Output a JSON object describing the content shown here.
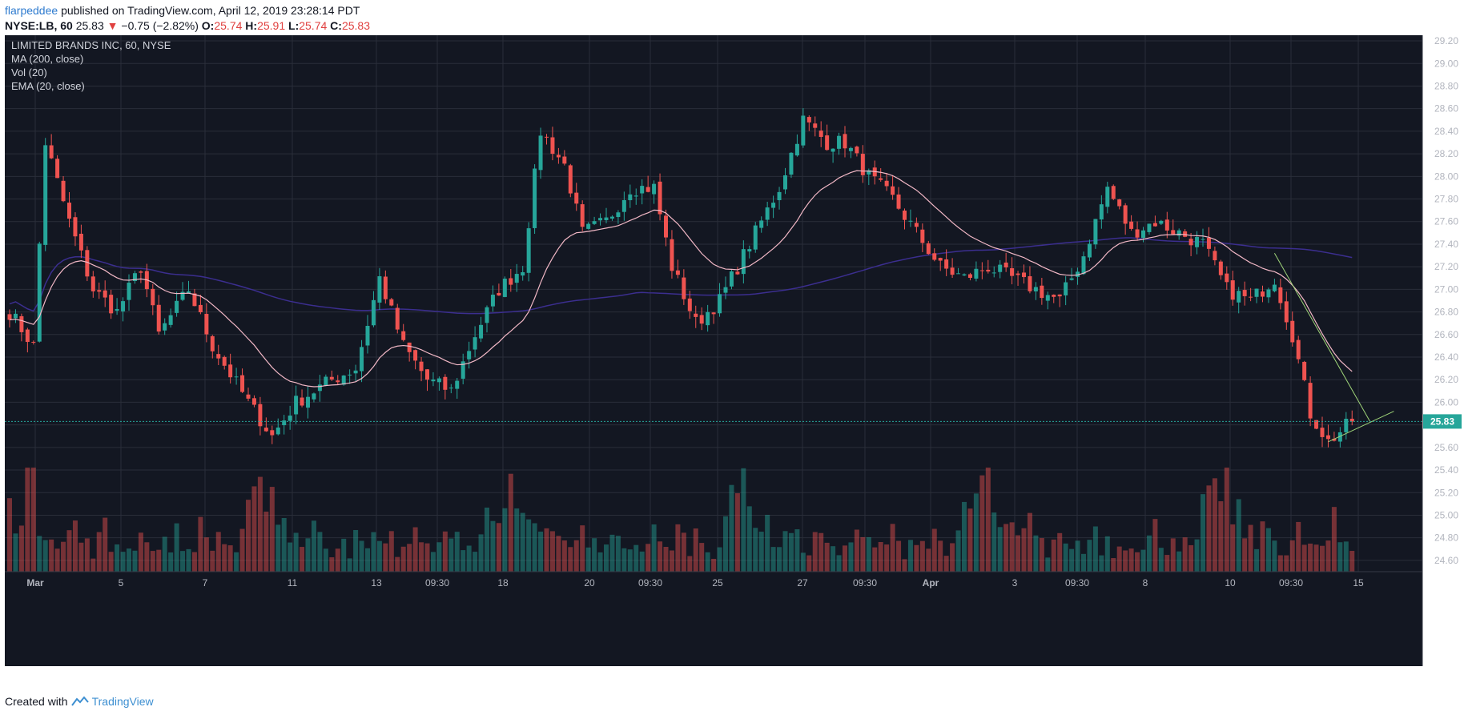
{
  "header": {
    "user": "flarpeddee",
    "published": "published on TradingView.com, April 12, 2019 23:28:14 PDT",
    "symbol": "NYSE:LB, 60",
    "last": "25.83",
    "change_arrow": "▼",
    "change": "−0.75 (−2.82%)",
    "o_label": "O:",
    "o": "25.74",
    "h_label": "H:",
    "h": "25.91",
    "l_label": "L:",
    "l": "25.74",
    "c_label": "C:",
    "c": "25.83"
  },
  "legend": {
    "title": "LIMITED BRANDS INC, 60, NYSE",
    "ma": "MA (200, close)",
    "vol": "Vol (20)",
    "ema": "EMA (20, close)"
  },
  "footer": {
    "created_with": "Created with",
    "brand": "TradingView"
  },
  "colors": {
    "background": "#131722",
    "grid": "#2a2e39",
    "up": "#26a69a",
    "down": "#ef5350",
    "ema": "#f2b8c6",
    "ma": "#3b2e8f",
    "price_line": "#26a69a",
    "trend": "#9fd479"
  },
  "chart_data": {
    "type": "candlestick",
    "title": "LIMITED BRANDS INC, 60, NYSE",
    "y_axis": {
      "min": 24.5,
      "max": 29.25,
      "ticks": [
        "29.20",
        "29.00",
        "28.80",
        "28.60",
        "28.40",
        "28.20",
        "28.00",
        "27.80",
        "27.60",
        "27.40",
        "27.20",
        "27.00",
        "26.80",
        "26.60",
        "26.40",
        "26.20",
        "26.00",
        "25.80",
        "25.60",
        "25.40",
        "25.20",
        "25.00",
        "24.80",
        "24.60"
      ]
    },
    "x_axis": {
      "ticks": [
        "Mar",
        "5",
        "7",
        "11",
        "13",
        "09:30",
        "18",
        "20",
        "09:30",
        "25",
        "27",
        "09:30",
        "Apr",
        "3",
        "09:30",
        "8",
        "10",
        "09:30",
        "15"
      ]
    },
    "last_price": 25.83,
    "anchors": [
      {
        "i": 0,
        "p": 26.8
      },
      {
        "i": 4,
        "p": 26.5
      },
      {
        "i": 6,
        "p": 28.3
      },
      {
        "i": 10,
        "p": 27.6
      },
      {
        "i": 14,
        "p": 27.0
      },
      {
        "i": 18,
        "p": 26.8
      },
      {
        "i": 22,
        "p": 27.2
      },
      {
        "i": 25,
        "p": 26.6
      },
      {
        "i": 30,
        "p": 27.0
      },
      {
        "i": 34,
        "p": 26.5
      },
      {
        "i": 40,
        "p": 26.0
      },
      {
        "i": 44,
        "p": 25.7
      },
      {
        "i": 48,
        "p": 26.0
      },
      {
        "i": 54,
        "p": 26.2
      },
      {
        "i": 58,
        "p": 26.3
      },
      {
        "i": 62,
        "p": 27.1
      },
      {
        "i": 66,
        "p": 26.5
      },
      {
        "i": 70,
        "p": 26.2
      },
      {
        "i": 74,
        "p": 26.1
      },
      {
        "i": 78,
        "p": 26.6
      },
      {
        "i": 82,
        "p": 27.0
      },
      {
        "i": 86,
        "p": 27.2
      },
      {
        "i": 89,
        "p": 28.4
      },
      {
        "i": 93,
        "p": 28.1
      },
      {
        "i": 96,
        "p": 27.5
      },
      {
        "i": 100,
        "p": 27.6
      },
      {
        "i": 104,
        "p": 27.9
      },
      {
        "i": 108,
        "p": 27.9
      },
      {
        "i": 111,
        "p": 27.2
      },
      {
        "i": 115,
        "p": 26.7
      },
      {
        "i": 119,
        "p": 26.9
      },
      {
        "i": 122,
        "p": 27.2
      },
      {
        "i": 125,
        "p": 27.5
      },
      {
        "i": 129,
        "p": 27.9
      },
      {
        "i": 133,
        "p": 28.5
      },
      {
        "i": 137,
        "p": 28.3
      },
      {
        "i": 140,
        "p": 28.3
      },
      {
        "i": 144,
        "p": 28.0
      },
      {
        "i": 148,
        "p": 27.8
      },
      {
        "i": 152,
        "p": 27.5
      },
      {
        "i": 156,
        "p": 27.2
      },
      {
        "i": 160,
        "p": 27.1
      },
      {
        "i": 164,
        "p": 27.2
      },
      {
        "i": 168,
        "p": 27.1
      },
      {
        "i": 172,
        "p": 27.0
      },
      {
        "i": 176,
        "p": 26.9
      },
      {
        "i": 180,
        "p": 27.3
      },
      {
        "i": 184,
        "p": 27.9
      },
      {
        "i": 188,
        "p": 27.5
      },
      {
        "i": 192,
        "p": 27.6
      },
      {
        "i": 196,
        "p": 27.5
      },
      {
        "i": 200,
        "p": 27.4
      },
      {
        "i": 204,
        "p": 27.0
      },
      {
        "i": 208,
        "p": 26.9
      },
      {
        "i": 212,
        "p": 27.1
      },
      {
        "i": 215,
        "p": 26.6
      },
      {
        "i": 218,
        "p": 25.9
      },
      {
        "i": 221,
        "p": 25.65
      },
      {
        "i": 225,
        "p": 25.83
      }
    ],
    "volume_levels": [
      0.55,
      0.6,
      0.7,
      0.9,
      1.0,
      0.45,
      0.5,
      0.4,
      0.35,
      0.3,
      0.35,
      0.45,
      0.3,
      0.25,
      0.2,
      0.3,
      0.4,
      0.2,
      0.3,
      0.25,
      0.2,
      0.3,
      0.45,
      0.25,
      0.3,
      0.2,
      0.25,
      0.3,
      0.35,
      0.25,
      0.2,
      0.3,
      0.4,
      0.3,
      0.25,
      0.35,
      0.3,
      0.25,
      0.2,
      0.3
    ],
    "ema_series": "EMA (20, close)",
    "ma_series": "MA (200, close)",
    "trendlines": [
      {
        "from": {
          "i": 212,
          "p": 27.32
        },
        "to": {
          "i": 228,
          "p": 25.83
        }
      },
      {
        "from": {
          "i": 221,
          "p": 25.65
        },
        "to": {
          "i": 232,
          "p": 25.92
        }
      }
    ]
  }
}
